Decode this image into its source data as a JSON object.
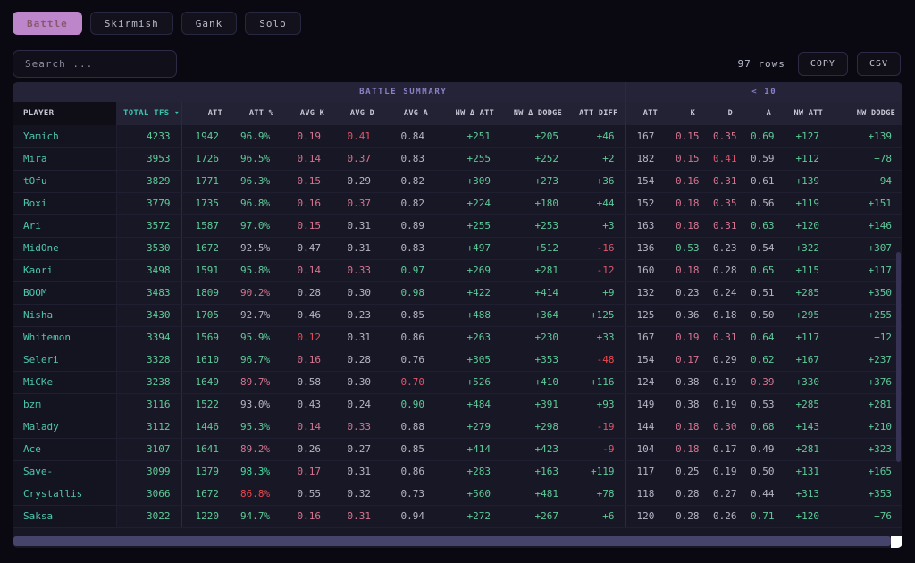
{
  "palette": {
    "page_bg": "#0a0911",
    "card_bg": "#181725",
    "header_bg": "#242337",
    "active_tab": "#bd86ca",
    "accent_teal": "#38c5ad",
    "player_link": "#4cc7ad",
    "value_green": "#5ecb98",
    "value_bright_green": "#3fe29e",
    "value_pink": "#d5758f",
    "value_red": "#e2556b",
    "value_bright_red": "#ea4a51",
    "value_neutral": "#b4b6c6",
    "group_title": "#8b80c5"
  },
  "tabs": [
    {
      "label": "Battle",
      "active": true
    },
    {
      "label": "Skirmish",
      "active": false
    },
    {
      "label": "Gank",
      "active": false
    },
    {
      "label": "Solo",
      "active": false
    }
  ],
  "toolbar": {
    "search_placeholder": "Search ...",
    "row_count": "97 rows",
    "copy_label": "COPY",
    "csv_label": "CSV"
  },
  "table": {
    "groups": [
      {
        "label": "",
        "span": 2
      },
      {
        "label": "BATTLE SUMMARY",
        "span": 8
      },
      {
        "label": "< 10",
        "span": 6
      }
    ],
    "columns": [
      {
        "label": "PLAYER"
      },
      {
        "label": "TOTAL TFS",
        "sorted": "desc"
      },
      {
        "label": "ATT"
      },
      {
        "label": "ATT %"
      },
      {
        "label": "AVG K"
      },
      {
        "label": "AVG D"
      },
      {
        "label": "AVG A"
      },
      {
        "label": "NW Δ ATT"
      },
      {
        "label": "NW Δ DODGE"
      },
      {
        "label": "ATT DIFF"
      },
      {
        "label": "ATT"
      },
      {
        "label": "K"
      },
      {
        "label": "D"
      },
      {
        "label": "A"
      },
      {
        "label": "NW ATT"
      },
      {
        "label": "NW DODGE"
      }
    ],
    "rows": [
      {
        "player": "Yamich",
        "cells": [
          [
            "4233",
            "g"
          ],
          [
            "1942",
            "g"
          ],
          [
            "96.9%",
            "g"
          ],
          [
            "0.19",
            "p"
          ],
          [
            "0.41",
            "r"
          ],
          [
            "0.84",
            "w"
          ],
          [
            "+251",
            "g"
          ],
          [
            "+205",
            "g"
          ],
          [
            "+46",
            "g"
          ],
          [
            "167",
            "w"
          ],
          [
            "0.15",
            "p"
          ],
          [
            "0.35",
            "p"
          ],
          [
            "0.69",
            "g"
          ],
          [
            "+127",
            "g"
          ],
          [
            "+139",
            "g"
          ]
        ]
      },
      {
        "player": "Mira",
        "cells": [
          [
            "3953",
            "g"
          ],
          [
            "1726",
            "g"
          ],
          [
            "96.5%",
            "g"
          ],
          [
            "0.14",
            "p"
          ],
          [
            "0.37",
            "p"
          ],
          [
            "0.83",
            "w"
          ],
          [
            "+255",
            "g"
          ],
          [
            "+252",
            "g"
          ],
          [
            "+2",
            "g"
          ],
          [
            "182",
            "w"
          ],
          [
            "0.15",
            "p"
          ],
          [
            "0.41",
            "r"
          ],
          [
            "0.59",
            "w"
          ],
          [
            "+112",
            "g"
          ],
          [
            "+78",
            "g"
          ]
        ]
      },
      {
        "player": "tOfu",
        "cells": [
          [
            "3829",
            "g"
          ],
          [
            "1771",
            "g"
          ],
          [
            "96.3%",
            "g"
          ],
          [
            "0.15",
            "p"
          ],
          [
            "0.29",
            "w"
          ],
          [
            "0.82",
            "w"
          ],
          [
            "+309",
            "g"
          ],
          [
            "+273",
            "g"
          ],
          [
            "+36",
            "g"
          ],
          [
            "154",
            "w"
          ],
          [
            "0.16",
            "p"
          ],
          [
            "0.31",
            "p"
          ],
          [
            "0.61",
            "w"
          ],
          [
            "+139",
            "g"
          ],
          [
            "+94",
            "g"
          ]
        ]
      },
      {
        "player": "Boxi",
        "cells": [
          [
            "3779",
            "g"
          ],
          [
            "1735",
            "g"
          ],
          [
            "96.8%",
            "g"
          ],
          [
            "0.16",
            "p"
          ],
          [
            "0.37",
            "p"
          ],
          [
            "0.82",
            "w"
          ],
          [
            "+224",
            "g"
          ],
          [
            "+180",
            "g"
          ],
          [
            "+44",
            "g"
          ],
          [
            "152",
            "w"
          ],
          [
            "0.18",
            "p"
          ],
          [
            "0.35",
            "p"
          ],
          [
            "0.56",
            "w"
          ],
          [
            "+119",
            "g"
          ],
          [
            "+151",
            "g"
          ]
        ]
      },
      {
        "player": "Ari",
        "cells": [
          [
            "3572",
            "g"
          ],
          [
            "1587",
            "g"
          ],
          [
            "97.0%",
            "g"
          ],
          [
            "0.15",
            "p"
          ],
          [
            "0.31",
            "w"
          ],
          [
            "0.89",
            "w"
          ],
          [
            "+255",
            "g"
          ],
          [
            "+253",
            "g"
          ],
          [
            "+3",
            "g"
          ],
          [
            "163",
            "w"
          ],
          [
            "0.18",
            "p"
          ],
          [
            "0.31",
            "p"
          ],
          [
            "0.63",
            "g"
          ],
          [
            "+120",
            "g"
          ],
          [
            "+146",
            "g"
          ]
        ]
      },
      {
        "player": "MidOne",
        "cells": [
          [
            "3530",
            "g"
          ],
          [
            "1672",
            "g"
          ],
          [
            "92.5%",
            "w"
          ],
          [
            "0.47",
            "w"
          ],
          [
            "0.31",
            "w"
          ],
          [
            "0.83",
            "w"
          ],
          [
            "+497",
            "g"
          ],
          [
            "+512",
            "g"
          ],
          [
            "-16",
            "r"
          ],
          [
            "136",
            "w"
          ],
          [
            "0.53",
            "g"
          ],
          [
            "0.23",
            "w"
          ],
          [
            "0.54",
            "w"
          ],
          [
            "+322",
            "g"
          ],
          [
            "+307",
            "g"
          ]
        ]
      },
      {
        "player": "Kaori",
        "cells": [
          [
            "3498",
            "g"
          ],
          [
            "1591",
            "g"
          ],
          [
            "95.8%",
            "g"
          ],
          [
            "0.14",
            "p"
          ],
          [
            "0.33",
            "p"
          ],
          [
            "0.97",
            "g"
          ],
          [
            "+269",
            "g"
          ],
          [
            "+281",
            "g"
          ],
          [
            "-12",
            "r"
          ],
          [
            "160",
            "w"
          ],
          [
            "0.18",
            "p"
          ],
          [
            "0.28",
            "w"
          ],
          [
            "0.65",
            "g"
          ],
          [
            "+115",
            "g"
          ],
          [
            "+117",
            "g"
          ]
        ]
      },
      {
        "player": "BOOM",
        "cells": [
          [
            "3483",
            "g"
          ],
          [
            "1809",
            "g"
          ],
          [
            "90.2%",
            "p"
          ],
          [
            "0.28",
            "w"
          ],
          [
            "0.30",
            "w"
          ],
          [
            "0.98",
            "g"
          ],
          [
            "+422",
            "g"
          ],
          [
            "+414",
            "g"
          ],
          [
            "+9",
            "g"
          ],
          [
            "132",
            "w"
          ],
          [
            "0.23",
            "w"
          ],
          [
            "0.24",
            "w"
          ],
          [
            "0.51",
            "w"
          ],
          [
            "+285",
            "g"
          ],
          [
            "+350",
            "g"
          ]
        ]
      },
      {
        "player": "Nisha",
        "cells": [
          [
            "3430",
            "g"
          ],
          [
            "1705",
            "g"
          ],
          [
            "92.7%",
            "w"
          ],
          [
            "0.46",
            "w"
          ],
          [
            "0.23",
            "w"
          ],
          [
            "0.85",
            "w"
          ],
          [
            "+488",
            "g"
          ],
          [
            "+364",
            "g"
          ],
          [
            "+125",
            "g"
          ],
          [
            "125",
            "w"
          ],
          [
            "0.36",
            "w"
          ],
          [
            "0.18",
            "w"
          ],
          [
            "0.50",
            "w"
          ],
          [
            "+295",
            "g"
          ],
          [
            "+255",
            "g"
          ]
        ]
      },
      {
        "player": "Whitemon",
        "cells": [
          [
            "3394",
            "g"
          ],
          [
            "1569",
            "g"
          ],
          [
            "95.9%",
            "g"
          ],
          [
            "0.12",
            "R"
          ],
          [
            "0.31",
            "w"
          ],
          [
            "0.86",
            "w"
          ],
          [
            "+263",
            "g"
          ],
          [
            "+230",
            "g"
          ],
          [
            "+33",
            "g"
          ],
          [
            "167",
            "w"
          ],
          [
            "0.19",
            "p"
          ],
          [
            "0.31",
            "p"
          ],
          [
            "0.64",
            "g"
          ],
          [
            "+117",
            "g"
          ],
          [
            "+12",
            "g"
          ]
        ]
      },
      {
        "player": "Seleri",
        "cells": [
          [
            "3328",
            "g"
          ],
          [
            "1610",
            "g"
          ],
          [
            "96.7%",
            "g"
          ],
          [
            "0.16",
            "p"
          ],
          [
            "0.28",
            "w"
          ],
          [
            "0.76",
            "w"
          ],
          [
            "+305",
            "g"
          ],
          [
            "+353",
            "g"
          ],
          [
            "-48",
            "R"
          ],
          [
            "154",
            "w"
          ],
          [
            "0.17",
            "p"
          ],
          [
            "0.29",
            "w"
          ],
          [
            "0.62",
            "g"
          ],
          [
            "+167",
            "g"
          ],
          [
            "+237",
            "g"
          ]
        ]
      },
      {
        "player": "MiCKe",
        "cells": [
          [
            "3238",
            "g"
          ],
          [
            "1649",
            "g"
          ],
          [
            "89.7%",
            "p"
          ],
          [
            "0.58",
            "w"
          ],
          [
            "0.30",
            "w"
          ],
          [
            "0.70",
            "r"
          ],
          [
            "+526",
            "g"
          ],
          [
            "+410",
            "g"
          ],
          [
            "+116",
            "g"
          ],
          [
            "124",
            "w"
          ],
          [
            "0.38",
            "w"
          ],
          [
            "0.19",
            "w"
          ],
          [
            "0.39",
            "p"
          ],
          [
            "+330",
            "g"
          ],
          [
            "+376",
            "g"
          ]
        ]
      },
      {
        "player": "bzm",
        "cells": [
          [
            "3116",
            "g"
          ],
          [
            "1522",
            "g"
          ],
          [
            "93.0%",
            "w"
          ],
          [
            "0.43",
            "w"
          ],
          [
            "0.24",
            "w"
          ],
          [
            "0.90",
            "g"
          ],
          [
            "+484",
            "g"
          ],
          [
            "+391",
            "g"
          ],
          [
            "+93",
            "g"
          ],
          [
            "149",
            "w"
          ],
          [
            "0.38",
            "w"
          ],
          [
            "0.19",
            "w"
          ],
          [
            "0.53",
            "w"
          ],
          [
            "+285",
            "g"
          ],
          [
            "+281",
            "g"
          ]
        ]
      },
      {
        "player": "Malady",
        "cells": [
          [
            "3112",
            "g"
          ],
          [
            "1446",
            "g"
          ],
          [
            "95.3%",
            "g"
          ],
          [
            "0.14",
            "p"
          ],
          [
            "0.33",
            "p"
          ],
          [
            "0.88",
            "w"
          ],
          [
            "+279",
            "g"
          ],
          [
            "+298",
            "g"
          ],
          [
            "-19",
            "r"
          ],
          [
            "144",
            "w"
          ],
          [
            "0.18",
            "p"
          ],
          [
            "0.30",
            "p"
          ],
          [
            "0.68",
            "g"
          ],
          [
            "+143",
            "g"
          ],
          [
            "+210",
            "g"
          ]
        ]
      },
      {
        "player": "Ace",
        "cells": [
          [
            "3107",
            "g"
          ],
          [
            "1641",
            "g"
          ],
          [
            "89.2%",
            "p"
          ],
          [
            "0.26",
            "w"
          ],
          [
            "0.27",
            "w"
          ],
          [
            "0.85",
            "w"
          ],
          [
            "+414",
            "g"
          ],
          [
            "+423",
            "g"
          ],
          [
            "-9",
            "r"
          ],
          [
            "104",
            "w"
          ],
          [
            "0.18",
            "p"
          ],
          [
            "0.17",
            "w"
          ],
          [
            "0.49",
            "w"
          ],
          [
            "+281",
            "g"
          ],
          [
            "+323",
            "g"
          ]
        ]
      },
      {
        "player": "Save-",
        "cells": [
          [
            "3099",
            "g"
          ],
          [
            "1379",
            "g"
          ],
          [
            "98.3%",
            "G"
          ],
          [
            "0.17",
            "p"
          ],
          [
            "0.31",
            "w"
          ],
          [
            "0.86",
            "w"
          ],
          [
            "+283",
            "g"
          ],
          [
            "+163",
            "g"
          ],
          [
            "+119",
            "g"
          ],
          [
            "117",
            "w"
          ],
          [
            "0.25",
            "w"
          ],
          [
            "0.19",
            "w"
          ],
          [
            "0.50",
            "w"
          ],
          [
            "+131",
            "g"
          ],
          [
            "+165",
            "g"
          ]
        ]
      },
      {
        "player": "Crystallis",
        "cells": [
          [
            "3066",
            "g"
          ],
          [
            "1672",
            "g"
          ],
          [
            "86.8%",
            "R"
          ],
          [
            "0.55",
            "w"
          ],
          [
            "0.32",
            "w"
          ],
          [
            "0.73",
            "w"
          ],
          [
            "+560",
            "g"
          ],
          [
            "+481",
            "g"
          ],
          [
            "+78",
            "g"
          ],
          [
            "118",
            "w"
          ],
          [
            "0.28",
            "w"
          ],
          [
            "0.27",
            "w"
          ],
          [
            "0.44",
            "w"
          ],
          [
            "+313",
            "g"
          ],
          [
            "+353",
            "g"
          ]
        ]
      },
      {
        "player": "Saksa",
        "cells": [
          [
            "3022",
            "g"
          ],
          [
            "1220",
            "g"
          ],
          [
            "94.7%",
            "g"
          ],
          [
            "0.16",
            "p"
          ],
          [
            "0.31",
            "p"
          ],
          [
            "0.94",
            "w"
          ],
          [
            "+272",
            "g"
          ],
          [
            "+267",
            "g"
          ],
          [
            "+6",
            "g"
          ],
          [
            "120",
            "w"
          ],
          [
            "0.28",
            "w"
          ],
          [
            "0.26",
            "w"
          ],
          [
            "0.71",
            "g"
          ],
          [
            "+120",
            "g"
          ],
          [
            "+76",
            "g"
          ]
        ]
      }
    ]
  }
}
